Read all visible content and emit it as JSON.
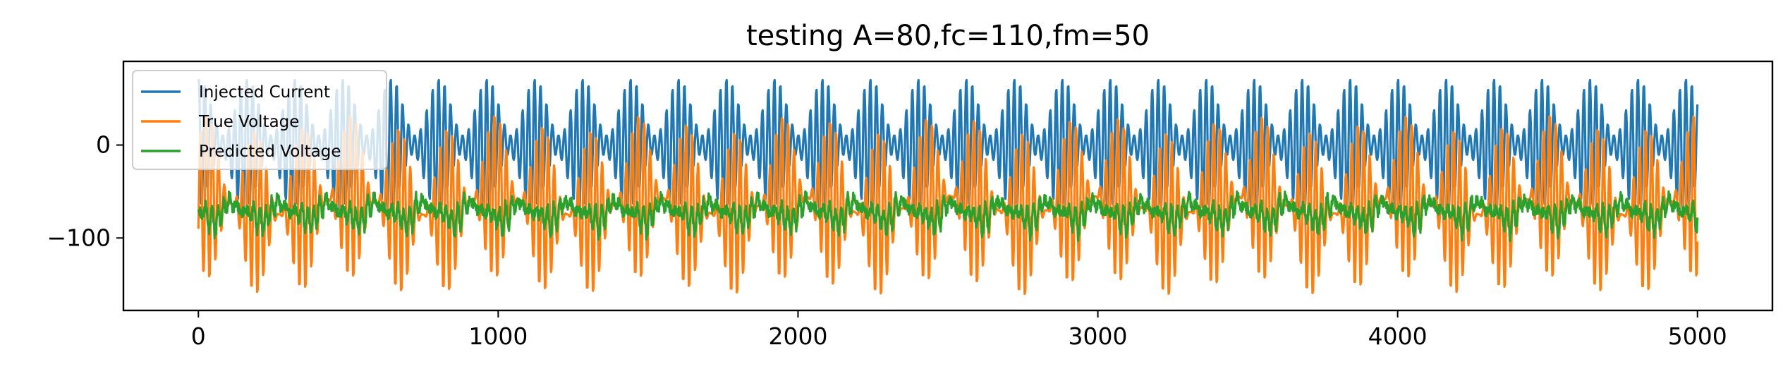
{
  "chart_data": {
    "type": "line",
    "title": "testing A=80,fc=110,fm=50",
    "xlabel": "",
    "ylabel": "",
    "xlim": [
      -250,
      5250
    ],
    "ylim": [
      -178,
      90
    ],
    "xticks": [
      0,
      1000,
      2000,
      3000,
      4000,
      5000
    ],
    "xtick_labels": [
      "0",
      "1000",
      "2000",
      "3000",
      "4000",
      "5000"
    ],
    "yticks": [
      0,
      -100
    ],
    "ytick_labels": [
      "0",
      "−100"
    ],
    "grid": false,
    "legend_position": "top-left",
    "series": [
      {
        "name": "Injected Current",
        "color": "#1f77b4",
        "x_range": [
          0,
          5000
        ],
        "approx_range": [
          -80,
          80
        ],
        "description_model": "amplitude-modulated oscillation, period ~160 samples envelope"
      },
      {
        "name": "True Voltage",
        "color": "#ff7f0e",
        "x_range": [
          0,
          5000
        ],
        "approx_range": [
          -165,
          53
        ]
      },
      {
        "name": "Predicted Voltage",
        "color": "#2ca02c",
        "x_range": [
          0,
          5000
        ],
        "approx_range": [
          -128,
          -50
        ]
      }
    ]
  }
}
